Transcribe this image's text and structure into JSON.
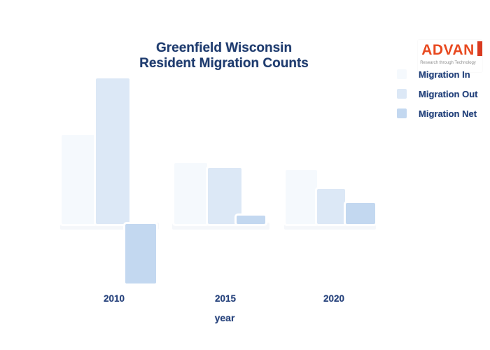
{
  "title": {
    "line1": "Greenfield Wisconsin",
    "line2": "Resident Migration Counts"
  },
  "logo": {
    "text": "ADVAN",
    "tagline": "Research through Technology",
    "text_color": "#e8491f",
    "accent_color": "#d93a20"
  },
  "legend": {
    "position": "right",
    "items": [
      {
        "label": "Migration In",
        "color": "#f5f9fd"
      },
      {
        "label": "Migration Out",
        "color": "#dce8f6"
      },
      {
        "label": "Migration Net",
        "color": "#c3d8f0"
      }
    ]
  },
  "axis": {
    "xlabel": "year",
    "categories": [
      "2010",
      "2015",
      "2020"
    ]
  },
  "chart_data": {
    "type": "bar",
    "title": "Greenfield Wisconsin Resident Migration Counts",
    "categories": [
      "2010",
      "2015",
      "2020"
    ],
    "series": [
      {
        "name": "Migration In",
        "color": "#f5f9fd",
        "values": [
          127,
          87,
          77
        ]
      },
      {
        "name": "Migration Out",
        "color": "#dce8f6",
        "values": [
          208,
          80,
          50
        ]
      },
      {
        "name": "Migration Net",
        "color": "#c3d8f0",
        "values": [
          -85,
          12,
          30
        ]
      }
    ],
    "xlabel": "year",
    "ylabel": "",
    "value_units": "relative counts (no y-axis ticks or gridlines visible; values estimated from bar heights in px)",
    "ylim": [
      -90,
      215
    ],
    "grid": false,
    "y_axis_visible": false,
    "legend_position": "right"
  }
}
